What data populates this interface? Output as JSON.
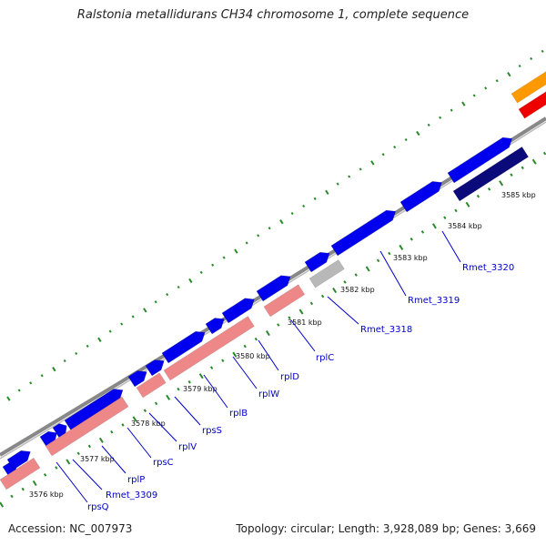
{
  "title": "Ralstonia metallidurans CH34 chromosome 1, complete sequence",
  "accession": "Accession: NC_007973",
  "stats": "Topology: circular; Length: 3,928,089 bp; Genes: 3,669",
  "colors": {
    "gene_forward": "#0000ee",
    "gene_reverse": "#0a0a7a",
    "cds_reverse_feature": "#ee8888",
    "grey_feature": "#b8b8b8",
    "orange_feature": "#ff9900",
    "red_feature": "#ee0000",
    "backbone": "#888888",
    "tick": "#2a8a2a",
    "label": "#0000cc"
  },
  "kbp_ticks": [
    "3576 kbp",
    "3577 kbp",
    "3578 kbp",
    "3579 kbp",
    "3580 kbp",
    "3581 kbp",
    "3582 kbp",
    "3583 kbp",
    "3584 kbp",
    "3585 kbp"
  ],
  "gene_labels": [
    "rpsQ",
    "Rmet_3309",
    "rplP",
    "rpsC",
    "rplV",
    "rpsS",
    "rplB",
    "rplW",
    "rplD",
    "rplC",
    "Rmet_3318",
    "Rmet_3319",
    "Rmet_3320"
  ]
}
